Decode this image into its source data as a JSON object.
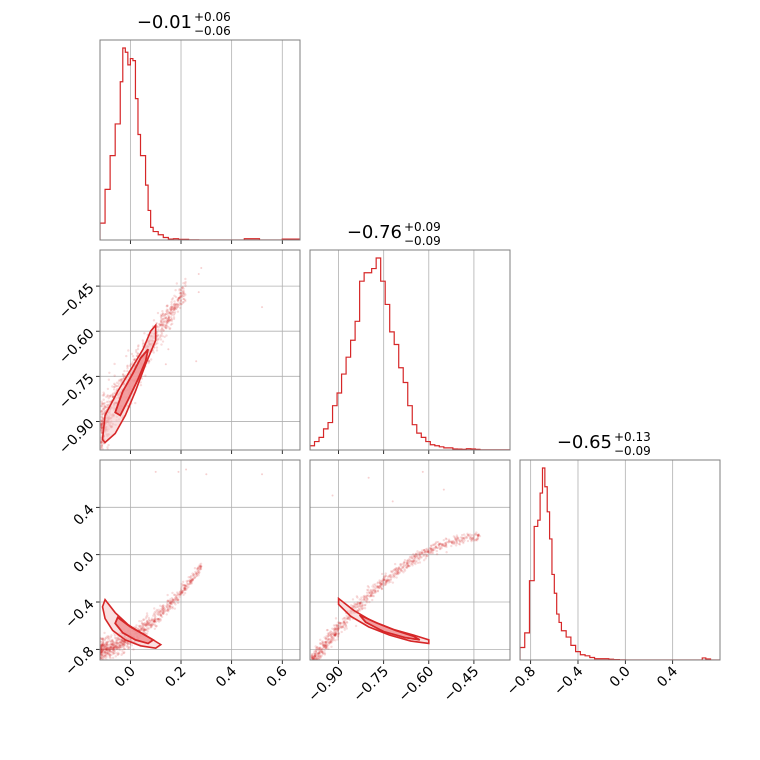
{
  "chart_data": {
    "type": "corner",
    "color": "#d62728",
    "parameters": [
      {
        "summary": "−0.01",
        "upper": "+0.06",
        "lower": "−0.06",
        "range": [
          -0.12,
          0.67
        ],
        "ticks": [
          0.0,
          0.2,
          0.4,
          0.6
        ],
        "tick_labels": [
          "0.0",
          "0.2",
          "0.4",
          "0.6"
        ]
      },
      {
        "summary": "−0.76",
        "upper": "+0.09",
        "lower": "−0.09",
        "range": [
          -0.995,
          -0.33
        ],
        "ticks": [
          -0.9,
          -0.75,
          -0.6,
          -0.45
        ],
        "tick_labels": [
          "−0.90",
          "−0.75",
          "−0.60",
          "−0.45"
        ]
      },
      {
        "summary": "−0.65",
        "upper": "+0.13",
        "lower": "−0.09",
        "range": [
          -0.89,
          0.8
        ],
        "ticks": [
          -0.8,
          -0.4,
          0.0,
          0.4
        ],
        "tick_labels": [
          "−0.8",
          "−0.4",
          "0.0",
          "0.4"
        ]
      }
    ],
    "histograms": [
      {
        "edges": [
          -0.12,
          -0.1,
          -0.08,
          -0.06,
          -0.04,
          -0.03,
          -0.02,
          -0.01,
          0.0,
          0.01,
          0.02,
          0.03,
          0.04,
          0.06,
          0.07,
          0.08,
          0.09,
          0.11,
          0.13,
          0.15,
          0.17,
          0.19,
          0.23,
          0.27,
          0.31,
          0.35,
          0.45,
          0.51,
          0.55,
          0.6,
          0.67
        ],
        "counts": [
          0.08,
          0.24,
          0.4,
          0.55,
          0.75,
          0.91,
          0.89,
          0.83,
          0.86,
          0.85,
          0.67,
          0.5,
          0.4,
          0.26,
          0.14,
          0.06,
          0.04,
          0.025,
          0.012,
          0.004,
          0.006,
          0.003,
          0.001,
          0.0,
          0.0,
          0.0,
          0.006,
          0.0,
          0.0,
          0.004
        ]
      },
      {
        "edges": [
          -0.995,
          -0.98,
          -0.965,
          -0.95,
          -0.935,
          -0.92,
          -0.905,
          -0.89,
          -0.875,
          -0.86,
          -0.845,
          -0.83,
          -0.815,
          -0.8,
          -0.79,
          -0.775,
          -0.76,
          -0.745,
          -0.73,
          -0.715,
          -0.7,
          -0.685,
          -0.67,
          -0.655,
          -0.64,
          -0.625,
          -0.61,
          -0.595,
          -0.58,
          -0.565,
          -0.55,
          -0.535,
          -0.52,
          -0.505,
          -0.49,
          -0.475,
          -0.46,
          -0.445,
          -0.43,
          -0.33
        ],
        "counts": [
          0.02,
          0.04,
          0.06,
          0.1,
          0.13,
          0.21,
          0.27,
          0.36,
          0.44,
          0.52,
          0.61,
          0.8,
          0.84,
          0.84,
          0.86,
          0.91,
          0.8,
          0.69,
          0.56,
          0.5,
          0.39,
          0.32,
          0.21,
          0.12,
          0.08,
          0.06,
          0.04,
          0.025,
          0.02,
          0.015,
          0.01,
          0.01,
          0.005,
          0.004,
          0.003,
          0.006,
          0.005,
          0.003,
          0.001
        ]
      },
      {
        "edges": [
          -0.89,
          -0.85,
          -0.81,
          -0.77,
          -0.74,
          -0.72,
          -0.7,
          -0.68,
          -0.66,
          -0.64,
          -0.62,
          -0.6,
          -0.58,
          -0.56,
          -0.54,
          -0.5,
          -0.46,
          -0.42,
          -0.38,
          -0.34,
          -0.3,
          -0.26,
          -0.2,
          -0.14,
          -0.1,
          -0.05,
          0.0,
          0.65,
          0.68,
          0.72,
          0.8
        ],
        "counts": [
          0.06,
          0.13,
          0.38,
          0.64,
          0.67,
          0.8,
          0.92,
          0.83,
          0.71,
          0.58,
          0.41,
          0.32,
          0.22,
          0.18,
          0.14,
          0.11,
          0.07,
          0.04,
          0.025,
          0.02,
          0.012,
          0.006,
          0.006,
          0.004,
          0.002,
          0.001,
          0.0,
          0.01,
          0.005,
          0.0
        ]
      }
    ],
    "pairs": [
      {
        "row": 1,
        "col": 0,
        "ridge": {
          "slope": 1.36,
          "intercept": -0.759,
          "width": 0.045,
          "x_range": [
            -0.115,
            0.22
          ]
        },
        "outliers": [
          [
            0.52,
            -0.52
          ],
          [
            0.28,
            -0.39
          ],
          [
            0.27,
            -0.41
          ],
          [
            0.15,
            -0.66
          ],
          [
            0.14,
            -0.71
          ],
          [
            0.26,
            -0.7
          ],
          [
            0.27,
            -0.47
          ]
        ],
        "contours": [
          {
            "level": "outer",
            "points": [
              [
                -0.11,
                -0.96
              ],
              [
                -0.1,
                -0.88
              ],
              [
                -0.05,
                -0.8
              ],
              [
                0.0,
                -0.73
              ],
              [
                0.05,
                -0.66
              ],
              [
                0.08,
                -0.6
              ],
              [
                0.1,
                -0.58
              ],
              [
                0.1,
                -0.63
              ],
              [
                0.06,
                -0.71
              ],
              [
                0.02,
                -0.8
              ],
              [
                -0.02,
                -0.88
              ],
              [
                -0.06,
                -0.94
              ],
              [
                -0.1,
                -0.97
              ]
            ]
          },
          {
            "level": "inner",
            "points": [
              [
                -0.06,
                -0.87
              ],
              [
                -0.03,
                -0.8
              ],
              [
                0.01,
                -0.74
              ],
              [
                0.04,
                -0.69
              ],
              [
                0.07,
                -0.66
              ],
              [
                0.06,
                -0.7
              ],
              [
                0.03,
                -0.76
              ],
              [
                -0.01,
                -0.83
              ],
              [
                -0.04,
                -0.88
              ]
            ]
          }
        ]
      },
      {
        "row": 2,
        "col": 0,
        "curve": {
          "a": -0.7,
          "b": 1.3,
          "c": 3.0,
          "width": 0.05,
          "x_range": [
            -0.12,
            0.28
          ]
        },
        "outliers": [
          [
            0.22,
            0.72
          ],
          [
            0.3,
            0.68
          ],
          [
            0.1,
            0.7
          ],
          [
            0.52,
            0.68
          ],
          [
            0.19,
            0.7
          ]
        ],
        "contours": [
          {
            "level": "outer",
            "points": [
              [
                -0.1,
                -0.38
              ],
              [
                -0.06,
                -0.49
              ],
              [
                -0.01,
                -0.59
              ],
              [
                0.04,
                -0.66
              ],
              [
                0.09,
                -0.72
              ],
              [
                0.12,
                -0.76
              ],
              [
                0.1,
                -0.79
              ],
              [
                0.04,
                -0.77
              ],
              [
                -0.02,
                -0.72
              ],
              [
                -0.07,
                -0.64
              ],
              [
                -0.1,
                -0.54
              ],
              [
                -0.11,
                -0.44
              ]
            ]
          },
          {
            "level": "inner",
            "points": [
              [
                -0.05,
                -0.53
              ],
              [
                0.0,
                -0.61
              ],
              [
                0.05,
                -0.67
              ],
              [
                0.09,
                -0.72
              ],
              [
                0.07,
                -0.75
              ],
              [
                0.02,
                -0.72
              ],
              [
                -0.03,
                -0.66
              ],
              [
                -0.06,
                -0.58
              ]
            ]
          }
        ]
      },
      {
        "row": 2,
        "col": 1,
        "curve": {
          "a": -0.25,
          "b": -2.2,
          "c": -2.9,
          "width": 0.04,
          "x_range": [
            -0.99,
            -0.43
          ]
        },
        "outliers": [
          [
            -0.92,
            0.5
          ],
          [
            -0.8,
            0.65
          ],
          [
            -0.62,
            0.7
          ],
          [
            -0.55,
            0.55
          ],
          [
            -0.72,
            0.45
          ]
        ],
        "contours": [
          {
            "level": "outer",
            "points": [
              [
                -0.9,
                -0.37
              ],
              [
                -0.85,
                -0.47
              ],
              [
                -0.79,
                -0.56
              ],
              [
                -0.72,
                -0.63
              ],
              [
                -0.65,
                -0.68
              ],
              [
                -0.6,
                -0.72
              ],
              [
                -0.6,
                -0.75
              ],
              [
                -0.66,
                -0.73
              ],
              [
                -0.73,
                -0.68
              ],
              [
                -0.8,
                -0.61
              ],
              [
                -0.86,
                -0.52
              ],
              [
                -0.9,
                -0.42
              ]
            ]
          },
          {
            "level": "inner",
            "points": [
              [
                -0.83,
                -0.51
              ],
              [
                -0.77,
                -0.58
              ],
              [
                -0.71,
                -0.64
              ],
              [
                -0.65,
                -0.69
              ],
              [
                -0.63,
                -0.72
              ],
              [
                -0.68,
                -0.7
              ],
              [
                -0.75,
                -0.65
              ],
              [
                -0.81,
                -0.57
              ]
            ]
          }
        ]
      }
    ],
    "grid": true,
    "legend": "none"
  }
}
